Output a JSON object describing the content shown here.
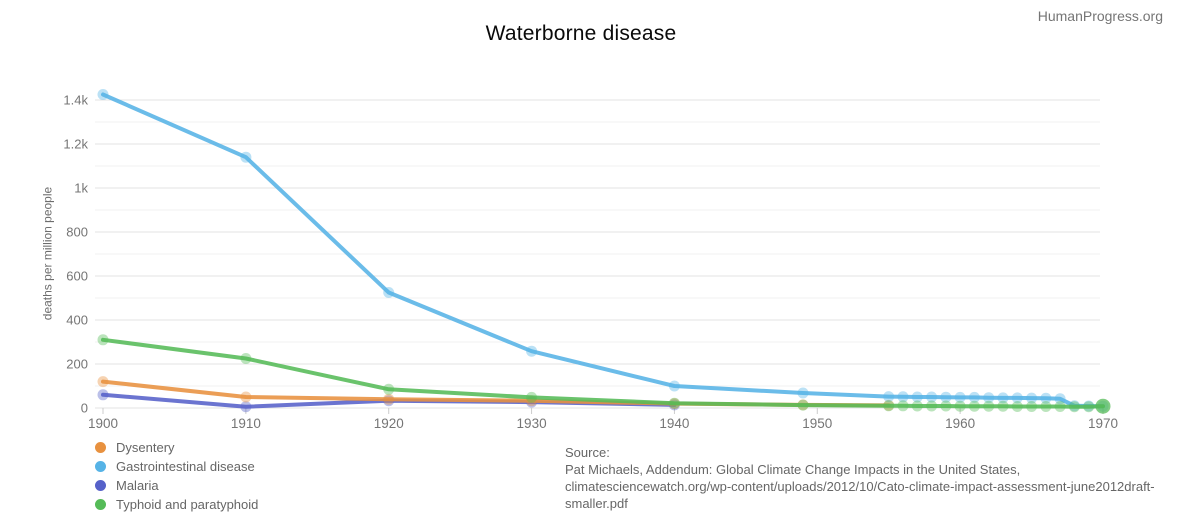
{
  "watermark": "HumanProgress.org",
  "chart": {
    "title": "Waterborne disease",
    "y_axis_title": "deaths per million people",
    "source_label": "Source:",
    "source_text": "Pat Michaels, Addendum: Global Climate Change Impacts in the United States, climatesciencewatch.org/wp-content/uploads/2012/10/Cato-climate-impact-assessment-june2012draft-smaller.pdf"
  },
  "chart_data": {
    "type": "line",
    "title": "Waterborne disease",
    "xlabel": "",
    "ylabel": "deaths per million people",
    "x_range": [
      1900,
      1970
    ],
    "y_range": [
      0,
      1400
    ],
    "grid": "horizontal",
    "legend_position": "bottom-left",
    "x_ticks": [
      1900,
      1910,
      1920,
      1930,
      1940,
      1950,
      1960,
      1970
    ],
    "y_ticks": [
      {
        "value": 0,
        "label": "0"
      },
      {
        "value": 200,
        "label": "200"
      },
      {
        "value": 400,
        "label": "400"
      },
      {
        "value": 600,
        "label": "600"
      },
      {
        "value": 800,
        "label": "800"
      },
      {
        "value": 1000,
        "label": "1k"
      },
      {
        "value": 1200,
        "label": "1.2k"
      },
      {
        "value": 1400,
        "label": "1.4k"
      }
    ],
    "palette": {
      "axis_text": "#757575",
      "grid_major": "#e3e3e3",
      "grid_minor": "#f2f2f2",
      "tick": "#cccccc"
    },
    "line_width": 4,
    "marker_radius": 5.5,
    "draw_order": [
      2,
      0,
      1,
      3
    ],
    "series": [
      {
        "name": "Dysentery",
        "color": "#e8913f",
        "points": [
          [
            1900,
            120
          ],
          [
            1910,
            50
          ],
          [
            1920,
            40
          ],
          [
            1930,
            33
          ],
          [
            1940,
            20
          ],
          [
            1949,
            14
          ],
          [
            1955,
            12
          ]
        ]
      },
      {
        "name": "Gastrointestinal disease",
        "color": "#56b3e6",
        "points": [
          [
            1900,
            1425
          ],
          [
            1910,
            1140
          ],
          [
            1920,
            525
          ],
          [
            1930,
            258
          ],
          [
            1940,
            100
          ],
          [
            1949,
            68
          ],
          [
            1955,
            52
          ],
          [
            1956,
            51
          ],
          [
            1957,
            50
          ],
          [
            1958,
            50
          ],
          [
            1959,
            49
          ],
          [
            1960,
            48
          ],
          [
            1961,
            48
          ],
          [
            1962,
            47
          ],
          [
            1963,
            46
          ],
          [
            1964,
            46
          ],
          [
            1965,
            45
          ],
          [
            1966,
            44
          ],
          [
            1967,
            42
          ],
          [
            1968,
            10
          ],
          [
            1969,
            9
          ],
          [
            1970,
            8
          ]
        ]
      },
      {
        "name": "Malaria",
        "color": "#5661c9",
        "points": [
          [
            1900,
            60
          ],
          [
            1910,
            6
          ],
          [
            1920,
            33
          ],
          [
            1930,
            27
          ],
          [
            1940,
            14
          ]
        ]
      },
      {
        "name": "Typhoid and paratyphoid",
        "color": "#55bb58",
        "points": [
          [
            1900,
            310
          ],
          [
            1910,
            225
          ],
          [
            1920,
            85
          ],
          [
            1930,
            48
          ],
          [
            1940,
            22
          ],
          [
            1949,
            13
          ],
          [
            1955,
            10
          ],
          [
            1956,
            10
          ],
          [
            1957,
            9
          ],
          [
            1958,
            9
          ],
          [
            1959,
            9
          ],
          [
            1960,
            8
          ],
          [
            1961,
            8
          ],
          [
            1962,
            8
          ],
          [
            1963,
            8
          ],
          [
            1964,
            7
          ],
          [
            1965,
            7
          ],
          [
            1966,
            7
          ],
          [
            1967,
            7
          ],
          [
            1968,
            6
          ],
          [
            1969,
            6
          ],
          [
            1970,
            8
          ]
        ],
        "end_marker_r": 7.5
      }
    ]
  }
}
